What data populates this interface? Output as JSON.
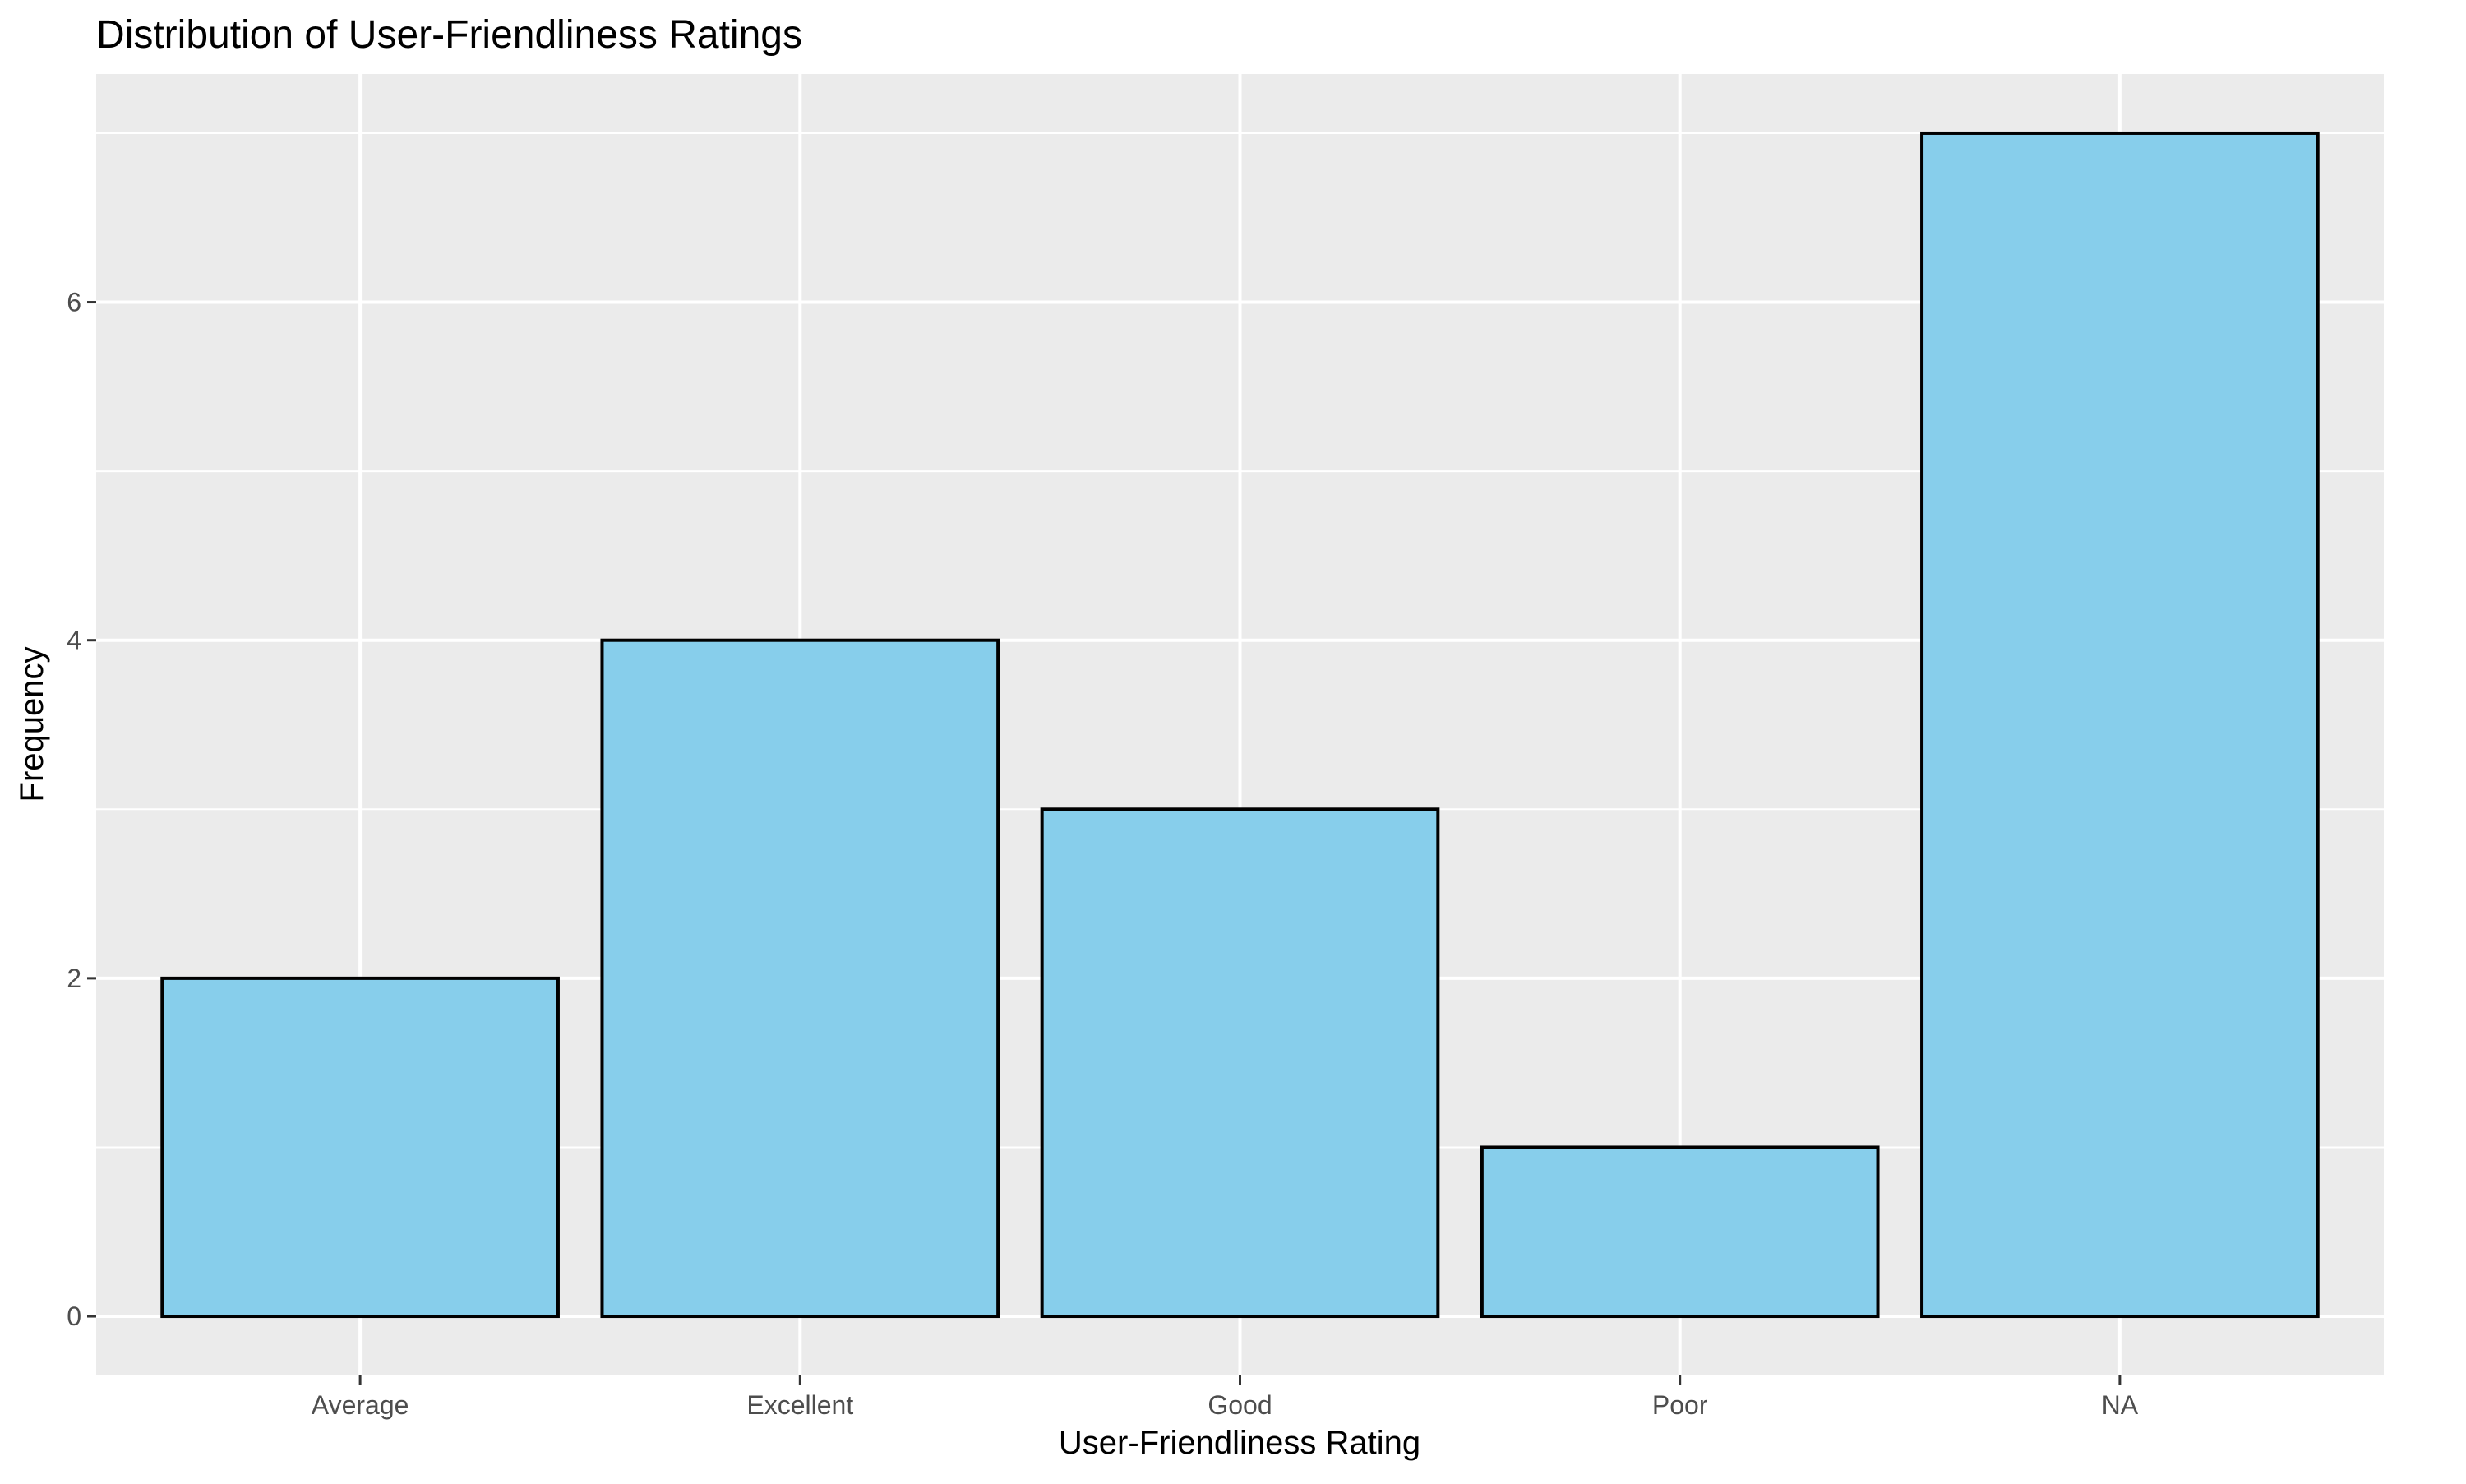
{
  "chart_data": {
    "type": "bar",
    "title": "Distribution of User-Friendliness Ratings",
    "xlabel": "User-Friendliness Rating",
    "ylabel": "Frequency",
    "categories": [
      "Average",
      "Excellent",
      "Good",
      "Poor",
      "NA"
    ],
    "values": [
      2,
      4,
      3,
      1,
      7
    ],
    "yticks": [
      0,
      2,
      4,
      6
    ],
    "ylim": [
      -0.35,
      7.35
    ],
    "grid": true,
    "colors": {
      "panel_background": "#EBEBEB",
      "grid": "#FFFFFF",
      "bar_fill": "#87CEEB",
      "bar_outline": "#000000",
      "tick_text": "#4D4D4D",
      "tick_mark": "#333333"
    }
  }
}
